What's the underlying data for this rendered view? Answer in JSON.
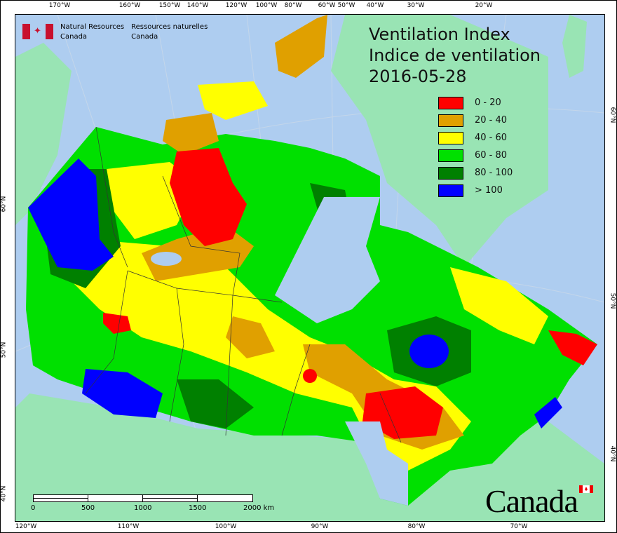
{
  "header": {
    "agency_en": [
      "Natural Resources",
      "Canada"
    ],
    "agency_fr": [
      "Ressources naturelles",
      "Canada"
    ]
  },
  "title": {
    "line1": "Ventilation Index",
    "line2": "Indice de ventilation",
    "date": "2016-05-28"
  },
  "legend": [
    {
      "label": "0 - 20",
      "color": "#ff0000"
    },
    {
      "label": "20 - 40",
      "color": "#e0a000"
    },
    {
      "label": "40 - 60",
      "color": "#ffff00"
    },
    {
      "label": "60 - 80",
      "color": "#00e000"
    },
    {
      "label": "80 - 100",
      "color": "#008000"
    },
    {
      "label": "> 100",
      "color": "#0000ff"
    }
  ],
  "axes": {
    "top": [
      "170°W",
      "160°W",
      "150°W",
      "140°W",
      "120°W",
      "100°W",
      "80°W",
      "60°W",
      "50°W",
      "40°W",
      "30°W",
      "20°W"
    ],
    "bottom": [
      "120°W",
      "110°W",
      "100°W",
      "90°W",
      "80°W",
      "70°W"
    ],
    "left": [
      "60°N",
      "50°N",
      "40°N"
    ],
    "right": [
      "60°N",
      "50°N",
      "40°N"
    ]
  },
  "scale_bar": {
    "labels": [
      "0",
      "500",
      "1000",
      "1500",
      "2000 km"
    ]
  },
  "wordmark": "Canada",
  "colors": {
    "ocean": "#aecdf0",
    "land": "#99e4b4"
  }
}
